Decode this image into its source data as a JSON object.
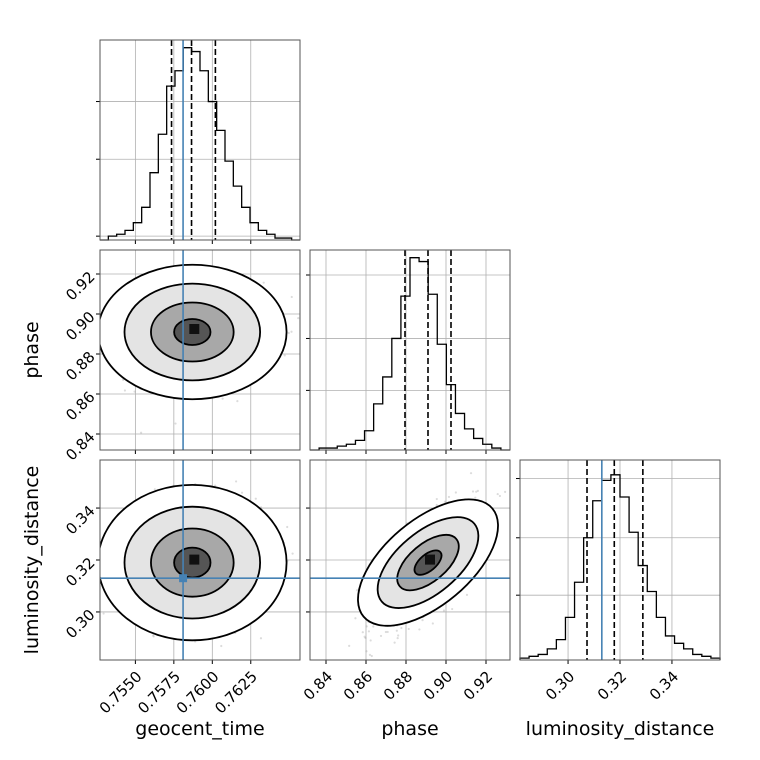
{
  "chart_data": {
    "type": "corner",
    "parameters": [
      "geocent_time",
      "phase",
      "luminosity_distance"
    ],
    "injection_color": "#4682b4",
    "truths": {
      "geocent_time": 0.7581,
      "phase": null,
      "luminosity_distance": 0.313
    },
    "quantiles": {
      "geocent_time": [
        0.75735,
        0.75865,
        0.7602
      ],
      "phase": [
        0.8795,
        0.891,
        0.9025
      ],
      "luminosity_distance": [
        0.3073,
        0.3178,
        0.3288
      ]
    },
    "axes": {
      "geocent_time": {
        "lim": [
          0.7527,
          0.7657
        ],
        "ticks": [
          0.755,
          0.7575,
          0.76,
          0.7625
        ],
        "tick_labels": [
          "0.7550",
          "0.7575",
          "0.7600",
          "0.7625"
        ]
      },
      "phase": {
        "lim": [
          0.832,
          0.932
        ],
        "ticks": [
          0.84,
          0.86,
          0.88,
          0.9,
          0.92
        ],
        "tick_labels": [
          "0.84",
          "0.86",
          "0.88",
          "0.90",
          "0.92"
        ]
      },
      "luminosity_distance": {
        "lim": [
          0.2815,
          0.3585
        ],
        "ticks": [
          0.3,
          0.32,
          0.34
        ],
        "tick_labels": [
          "0.30",
          "0.32",
          "0.34"
        ]
      }
    },
    "histograms": {
      "geocent_time": {
        "counts": [
          0,
          2,
          3,
          5,
          9,
          17,
          35,
          55,
          80,
          88,
          100,
          98,
          88,
          72,
          57,
          41,
          28,
          17,
          9,
          5,
          3,
          1,
          1,
          0
        ],
        "ymax": 104,
        "yticks": [
          2,
          42,
          72
        ]
      },
      "phase": {
        "counts": [
          0,
          1,
          1,
          2,
          3,
          5,
          10,
          24,
          38,
          58,
          80,
          100,
          98,
          81,
          55,
          34,
          19,
          11,
          6,
          3,
          1,
          0
        ],
        "ymax": 104,
        "yticks": [
          31,
          58,
          91
        ]
      },
      "luminosity_distance": {
        "counts": [
          1,
          2,
          3,
          6,
          11,
          23,
          42,
          66,
          86,
          97,
          100,
          88,
          69,
          51,
          37,
          23,
          13,
          9,
          6,
          3,
          2,
          1
        ],
        "ymax": 108,
        "yticks": [
          35,
          66,
          98
        ]
      }
    },
    "contour_levels": [
      "39%",
      "86%",
      "99%"
    ],
    "grid": true
  }
}
